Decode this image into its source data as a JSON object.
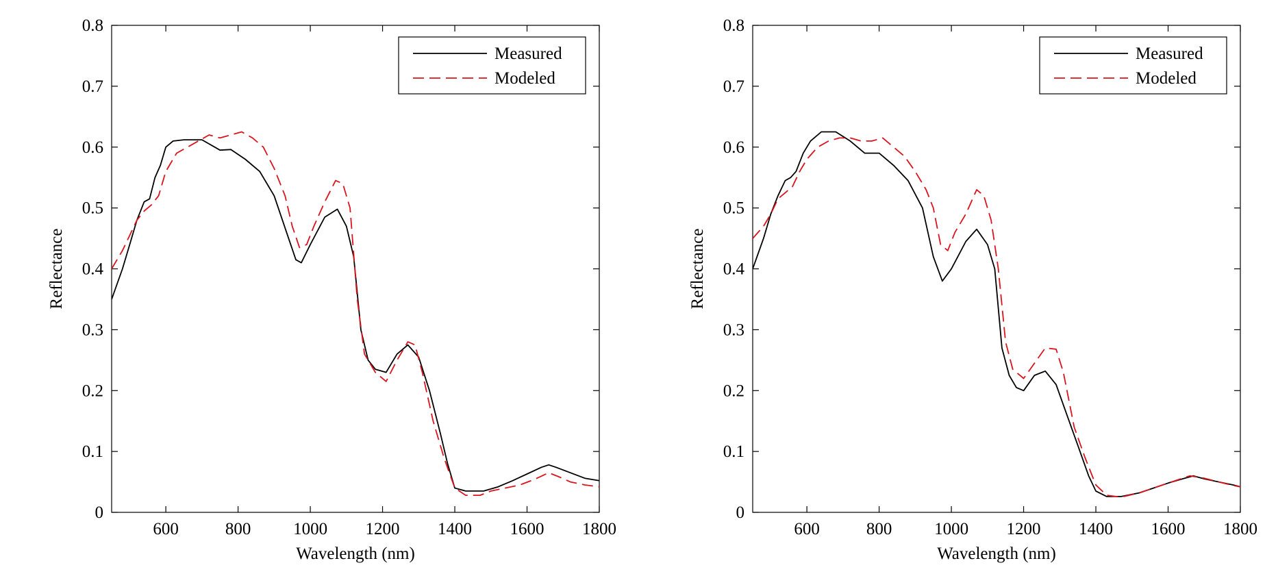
{
  "chart_data": [
    {
      "type": "line",
      "xlabel": "Wavelength (nm)",
      "ylabel": "Reflectance",
      "xlim": [
        450,
        1800
      ],
      "ylim": [
        0,
        0.8
      ],
      "xticks": [
        "600",
        "800",
        "1000",
        "1200",
        "1400",
        "1600",
        "1800"
      ],
      "yticks": [
        "0",
        "0.1",
        "0.2",
        "0.3",
        "0.4",
        "0.5",
        "0.6",
        "0.7",
        "0.8"
      ],
      "grid": false,
      "legend_position": "top-right",
      "series": [
        {
          "name": "Measured",
          "color": "#000000",
          "style": "solid",
          "x": [
            450,
            480,
            500,
            520,
            540,
            555,
            570,
            585,
            600,
            620,
            650,
            700,
            750,
            780,
            820,
            860,
            900,
            940,
            960,
            975,
            1000,
            1040,
            1075,
            1100,
            1120,
            1140,
            1160,
            1180,
            1210,
            1240,
            1270,
            1300,
            1330,
            1360,
            1380,
            1400,
            1430,
            1480,
            1520,
            1560,
            1600,
            1640,
            1660,
            1680,
            1720,
            1760,
            1800
          ],
          "y": [
            0.35,
            0.4,
            0.44,
            0.48,
            0.51,
            0.515,
            0.55,
            0.57,
            0.6,
            0.61,
            0.612,
            0.612,
            0.595,
            0.596,
            0.58,
            0.56,
            0.52,
            0.45,
            0.415,
            0.41,
            0.44,
            0.485,
            0.498,
            0.47,
            0.42,
            0.3,
            0.25,
            0.235,
            0.23,
            0.26,
            0.275,
            0.255,
            0.2,
            0.13,
            0.08,
            0.04,
            0.035,
            0.035,
            0.042,
            0.052,
            0.063,
            0.074,
            0.078,
            0.074,
            0.065,
            0.056,
            0.052
          ]
        },
        {
          "name": "Modeled",
          "color": "#d9141d",
          "style": "dashed",
          "x": [
            450,
            480,
            500,
            520,
            540,
            560,
            580,
            600,
            630,
            660,
            690,
            720,
            750,
            780,
            810,
            840,
            870,
            900,
            930,
            950,
            970,
            990,
            1010,
            1040,
            1070,
            1090,
            1110,
            1130,
            1150,
            1180,
            1210,
            1240,
            1270,
            1290,
            1310,
            1340,
            1370,
            1400,
            1430,
            1470,
            1500,
            1540,
            1580,
            1620,
            1660,
            1690,
            1720,
            1760,
            1800
          ],
          "y": [
            0.4,
            0.43,
            0.455,
            0.48,
            0.495,
            0.505,
            0.52,
            0.56,
            0.59,
            0.6,
            0.61,
            0.62,
            0.615,
            0.62,
            0.625,
            0.615,
            0.6,
            0.565,
            0.52,
            0.47,
            0.435,
            0.44,
            0.47,
            0.51,
            0.545,
            0.54,
            0.5,
            0.35,
            0.26,
            0.23,
            0.215,
            0.25,
            0.28,
            0.275,
            0.23,
            0.15,
            0.09,
            0.04,
            0.028,
            0.028,
            0.035,
            0.04,
            0.045,
            0.054,
            0.065,
            0.058,
            0.05,
            0.045,
            0.042
          ]
        }
      ]
    },
    {
      "type": "line",
      "xlabel": "Wavelength (nm)",
      "ylabel": "Reflectance",
      "xlim": [
        450,
        1800
      ],
      "ylim": [
        0,
        0.8
      ],
      "xticks": [
        "600",
        "800",
        "1000",
        "1200",
        "1400",
        "1600",
        "1800"
      ],
      "yticks": [
        "0",
        "0.1",
        "0.2",
        "0.3",
        "0.4",
        "0.5",
        "0.6",
        "0.7",
        "0.8"
      ],
      "grid": false,
      "legend_position": "top-right",
      "series": [
        {
          "name": "Measured",
          "color": "#000000",
          "style": "solid",
          "x": [
            450,
            480,
            500,
            520,
            540,
            555,
            570,
            590,
            610,
            640,
            680,
            720,
            760,
            800,
            840,
            880,
            920,
            950,
            975,
            1000,
            1040,
            1070,
            1100,
            1120,
            1140,
            1160,
            1180,
            1200,
            1230,
            1260,
            1290,
            1320,
            1350,
            1380,
            1400,
            1430,
            1470,
            1520,
            1560,
            1600,
            1640,
            1670,
            1700,
            1740,
            1780,
            1800
          ],
          "y": [
            0.4,
            0.45,
            0.49,
            0.52,
            0.545,
            0.55,
            0.56,
            0.59,
            0.61,
            0.625,
            0.625,
            0.61,
            0.59,
            0.59,
            0.57,
            0.545,
            0.5,
            0.42,
            0.38,
            0.4,
            0.445,
            0.465,
            0.44,
            0.4,
            0.27,
            0.225,
            0.205,
            0.2,
            0.225,
            0.232,
            0.21,
            0.16,
            0.11,
            0.06,
            0.035,
            0.026,
            0.026,
            0.032,
            0.04,
            0.048,
            0.055,
            0.06,
            0.055,
            0.05,
            0.045,
            0.042
          ]
        },
        {
          "name": "Modeled",
          "color": "#d9141d",
          "style": "dashed",
          "x": [
            450,
            480,
            500,
            520,
            540,
            560,
            580,
            600,
            630,
            660,
            690,
            720,
            750,
            780,
            810,
            840,
            870,
            900,
            930,
            950,
            970,
            990,
            1010,
            1040,
            1070,
            1090,
            1110,
            1130,
            1150,
            1170,
            1200,
            1230,
            1260,
            1290,
            1310,
            1340,
            1370,
            1400,
            1430,
            1470,
            1520,
            1560,
            1600,
            1640,
            1660,
            1700,
            1740,
            1780,
            1800
          ],
          "y": [
            0.45,
            0.47,
            0.49,
            0.515,
            0.525,
            0.535,
            0.56,
            0.58,
            0.6,
            0.61,
            0.615,
            0.615,
            0.61,
            0.61,
            0.615,
            0.6,
            0.585,
            0.56,
            0.53,
            0.5,
            0.44,
            0.43,
            0.46,
            0.49,
            0.53,
            0.52,
            0.48,
            0.4,
            0.28,
            0.235,
            0.22,
            0.245,
            0.27,
            0.268,
            0.23,
            0.14,
            0.09,
            0.045,
            0.028,
            0.025,
            0.032,
            0.04,
            0.048,
            0.056,
            0.06,
            0.056,
            0.05,
            0.044,
            0.042
          ]
        }
      ]
    }
  ]
}
